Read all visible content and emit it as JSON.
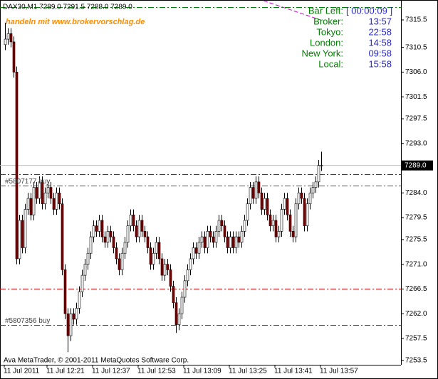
{
  "chart_data": {
    "type": "candlestick",
    "header": "DAX30,M1  7289.0 7291.5 7288.0 7289.0",
    "watermark": "handeln mit www.brokervorschlag.de",
    "copyright": "Ava MetaTrader, © 2001-2011 MetaQuotes Software Corp.",
    "categories": [
      "11 Jul 2011",
      null,
      null,
      null,
      null,
      null,
      null,
      null,
      null,
      null,
      null,
      null,
      null,
      null,
      null,
      "11 Jul 12:21",
      null,
      null,
      null,
      null,
      null,
      null,
      null,
      null,
      null,
      null,
      null,
      null,
      null,
      null,
      null,
      "11 Jul 12:37",
      null,
      null,
      null,
      null,
      null,
      null,
      null,
      null,
      null,
      null,
      null,
      null,
      null,
      null,
      null,
      "11 Jul 12:53",
      null,
      null,
      null,
      null,
      null,
      null,
      null,
      null,
      null,
      null,
      null,
      null,
      null,
      null,
      null,
      "11 Jul 13:09",
      null,
      null,
      null,
      null,
      null,
      null,
      null,
      null,
      null,
      null,
      null,
      null,
      null,
      null,
      null,
      "11 Jul 13:25",
      null,
      null,
      null,
      null,
      null,
      null,
      null,
      null,
      null,
      null,
      null,
      null,
      null,
      null,
      null,
      "11 Jul 13:41",
      null,
      null,
      null,
      null,
      null,
      null,
      null,
      null,
      null,
      null,
      null,
      null,
      null,
      null,
      null,
      "11 Jul 13:57"
    ],
    "open": [
      7311,
      7312,
      7313,
      7311.5,
      7306,
      7272,
      7279,
      7274,
      7281,
      7283,
      7280,
      7285,
      7283,
      7286,
      7282,
      7284,
      7285,
      7283,
      7281,
      7284,
      7282,
      7270,
      7262,
      7258,
      7262,
      7261,
      7263,
      7266,
      7269,
      7271,
      7273,
      7276,
      7278,
      7277,
      7279,
      7276,
      7275,
      7277,
      7276,
      7274,
      7272,
      7270,
      7273,
      7275,
      7278,
      7280,
      7278,
      7276,
      7279,
      7277,
      7276,
      7274,
      7271,
      7273,
      7275,
      7272,
      7269,
      7271,
      7270,
      7267,
      7264,
      7260,
      7262,
      7265,
      7268,
      7270,
      7272,
      7274,
      7273,
      7275,
      7276,
      7274,
      7277,
      7276,
      7275,
      7277,
      7279,
      7278,
      7276,
      7274,
      7276,
      7274,
      7276,
      7275,
      7277,
      7279,
      7282,
      7285,
      7283,
      7286,
      7284,
      7281,
      7283,
      7280,
      7278,
      7279,
      7276,
      7277,
      7281,
      7283,
      7280,
      7277,
      7276,
      7282,
      7284,
      7283,
      7278,
      7282,
      7284,
      7285,
      7286,
      7289
    ],
    "high": [
      7315,
      7314,
      7314,
      7312.5,
      7307,
      7280,
      7280,
      7282,
      7284,
      7284,
      7286,
      7286,
      7287,
      7287,
      7285,
      7286,
      7286,
      7284,
      7285,
      7285,
      7283,
      7271,
      7263,
      7263,
      7263,
      7264,
      7267,
      7270,
      7272,
      7274,
      7277,
      7279,
      7279,
      7280,
      7280,
      7277,
      7278,
      7278,
      7277,
      7275,
      7273,
      7274,
      7276,
      7279,
      7281,
      7281,
      7279,
      7280,
      7280,
      7278,
      7277,
      7275,
      7274,
      7276,
      7276,
      7273,
      7272,
      7272,
      7271,
      7268,
      7265,
      7263,
      7266,
      7269,
      7271,
      7273,
      7275,
      7275,
      7276,
      7277,
      7277,
      7278,
      7278,
      7277,
      7278,
      7280,
      7280,
      7279,
      7277,
      7277,
      7277,
      7277,
      7277,
      7278,
      7280,
      7283,
      7286,
      7286,
      7287,
      7287,
      7285,
      7284,
      7284,
      7281,
      7280,
      7280,
      7278,
      7282,
      7284,
      7284,
      7281,
      7278,
      7283,
      7285,
      7285,
      7284,
      7283,
      7285,
      7286,
      7287,
      7290,
      7291.5
    ],
    "low": [
      7310,
      7311,
      7310.5,
      7305,
      7271,
      7271,
      7273,
      7273,
      7280,
      7279,
      7279,
      7282,
      7282,
      7281,
      7281,
      7283,
      7282,
      7280,
      7280,
      7281,
      7269,
      7261,
      7255,
      7257,
      7260,
      7260,
      7262,
      7265,
      7268,
      7270,
      7272,
      7275,
      7276,
      7276,
      7275,
      7274,
      7274,
      7275,
      7273,
      7271,
      7269,
      7269,
      7272,
      7274,
      7277,
      7277,
      7275,
      7275,
      7276,
      7275,
      7273,
      7270,
      7270,
      7272,
      7271,
      7268,
      7268,
      7269,
      7266,
      7263,
      7258.5,
      7259,
      7261,
      7264,
      7267,
      7269,
      7271,
      7272,
      7272,
      7274,
      7273,
      7273,
      7275,
      7274,
      7274,
      7276,
      7277,
      7275,
      7273,
      7273,
      7273,
      7273,
      7274,
      7274,
      7276,
      7278,
      7281,
      7282,
      7282,
      7283,
      7280,
      7280,
      7279,
      7277,
      7277,
      7275,
      7275,
      7276,
      7280,
      7279,
      7276,
      7275,
      7275,
      7281,
      7282,
      7277,
      7277,
      7281,
      7283,
      7284,
      7285,
      7288
    ],
    "close": [
      7312,
      7313,
      7311.5,
      7306,
      7272,
      7279,
      7274,
      7281,
      7283,
      7280,
      7285,
      7283,
      7286,
      7282,
      7284,
      7285,
      7283,
      7281,
      7284,
      7282,
      7270,
      7262,
      7258,
      7262,
      7261,
      7263,
      7266,
      7269,
      7271,
      7273,
      7276,
      7278,
      7277,
      7279,
      7276,
      7275,
      7277,
      7276,
      7274,
      7272,
      7270,
      7273,
      7275,
      7278,
      7280,
      7278,
      7276,
      7279,
      7277,
      7276,
      7274,
      7271,
      7273,
      7275,
      7272,
      7269,
      7271,
      7270,
      7267,
      7264,
      7260,
      7262,
      7265,
      7268,
      7270,
      7272,
      7274,
      7273,
      7275,
      7276,
      7274,
      7277,
      7276,
      7275,
      7277,
      7279,
      7278,
      7276,
      7274,
      7276,
      7274,
      7276,
      7275,
      7277,
      7279,
      7282,
      7285,
      7283,
      7286,
      7284,
      7281,
      7283,
      7280,
      7278,
      7279,
      7276,
      7277,
      7281,
      7283,
      7280,
      7277,
      7276,
      7282,
      7284,
      7283,
      7278,
      7282,
      7284,
      7285,
      7286,
      7289,
      7289
    ],
    "ylim": [
      7252.7,
      7319
    ],
    "yticks": [
      7315.5,
      7310.5,
      {
        "value": 7306,
        "label": "7306.0"
      },
      7301.5,
      7297.5,
      {
        "value": 7293,
        "label": "7293.0"
      },
      {
        "value": 7284,
        "label": "7284.0"
      },
      7279.5,
      7275.5,
      {
        "value": 7271,
        "label": "7271.0"
      },
      7266.5,
      {
        "value": 7262,
        "label": "7262.0"
      },
      7257.5,
      7253.5
    ],
    "current_price": {
      "value": 7289,
      "label": "7289.0"
    },
    "levels": [
      {
        "value": 7317.8,
        "color": "#008000"
      },
      {
        "value": 7287.4,
        "color": "#cc0000"
      },
      {
        "value": 7285.3,
        "color": "#008000",
        "label": "#5807177 buy"
      },
      {
        "value": 7266.5,
        "color": "#cc0000"
      },
      {
        "value": 7259.9,
        "color": "#008000",
        "label": "#5807356 buy"
      }
    ],
    "bull_color": "#ffffff",
    "bear_color": "#800000"
  },
  "info_panel": {
    "rows": [
      {
        "label": "Bar Left:",
        "value": "[ 00:00:09 ]"
      },
      {
        "label": "Broker:",
        "value": "13:57"
      },
      {
        "label": "Tokyo:",
        "value": "22:58"
      },
      {
        "label": "London:",
        "value": "14:58"
      },
      {
        "label": "New York:",
        "value": "09:58"
      },
      {
        "label": "Local:",
        "value": "15:58"
      }
    ]
  }
}
